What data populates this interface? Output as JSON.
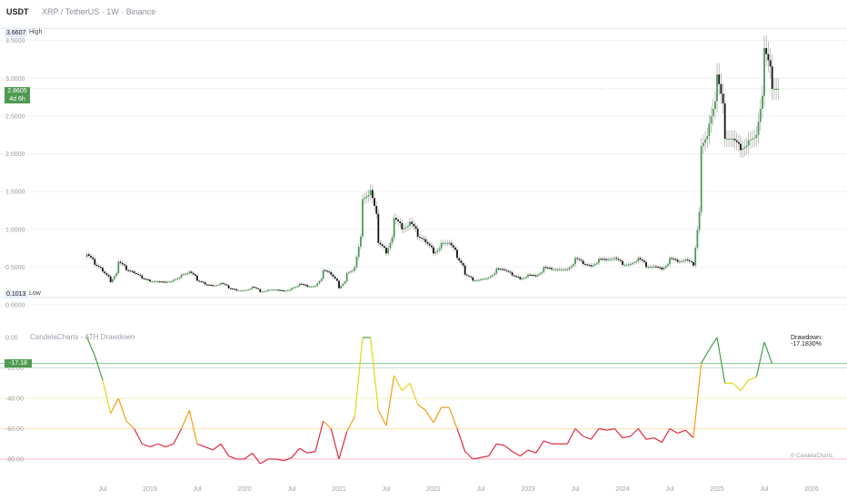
{
  "header": {
    "unit": "USDT",
    "symbol": "XRP / TetherUS · 1W · Binance"
  },
  "price_tags": {
    "high_value": "3.6607",
    "high_label": "High",
    "low_value": "0.1013",
    "low_label": "Low",
    "last_value": "2.8605",
    "last_countdown": "4d 6h"
  },
  "indicator": {
    "title": "CandelaCharts - ATH Drawdown",
    "current_value": "-17.18",
    "drawdown_label": "Drawdown: -17.1830%",
    "watermark": "© CandelaCharts"
  },
  "colors": {
    "up": "#4f9a52",
    "down": "#111111",
    "green": "#43a047",
    "yellow": "#e8d21c",
    "orange": "#f39c12",
    "red": "#e0283f"
  },
  "chart_data": [
    {
      "type": "candlestick",
      "title": "XRP / TetherUS · 1W · Binance",
      "ylim": [
        0.0,
        3.7
      ],
      "y_ticks": [
        "0.0000",
        "0.5000",
        "1.0000",
        "1.5000",
        "2.0000",
        "2.5000",
        "3.0000",
        "3.5000"
      ],
      "x_ticks": [
        "Jul",
        "2019",
        "Jul",
        "2020",
        "Jul",
        "2021",
        "Jul",
        "2022",
        "Jul",
        "2023",
        "Jul",
        "2024",
        "Jul",
        "2025",
        "Jul",
        "2026"
      ],
      "high": 3.6607,
      "low": 0.1013,
      "last": 2.8605,
      "x": [
        "2018-05",
        "2018-06",
        "2018-07",
        "2018-08",
        "2018-09",
        "2018-10",
        "2018-11",
        "2018-12",
        "2019-01",
        "2019-02",
        "2019-03",
        "2019-04",
        "2019-05",
        "2019-06",
        "2019-07",
        "2019-08",
        "2019-09",
        "2019-10",
        "2019-11",
        "2019-12",
        "2020-01",
        "2020-02",
        "2020-03",
        "2020-04",
        "2020-05",
        "2020-06",
        "2020-07",
        "2020-08",
        "2020-09",
        "2020-10",
        "2020-11",
        "2020-12",
        "2021-01",
        "2021-02",
        "2021-03",
        "2021-04",
        "2021-05",
        "2021-06",
        "2021-07",
        "2021-08",
        "2021-09",
        "2021-10",
        "2021-11",
        "2021-12",
        "2022-01",
        "2022-02",
        "2022-03",
        "2022-04",
        "2022-05",
        "2022-06",
        "2022-07",
        "2022-08",
        "2022-09",
        "2022-10",
        "2022-11",
        "2022-12",
        "2023-01",
        "2023-02",
        "2023-03",
        "2023-04",
        "2023-05",
        "2023-06",
        "2023-07",
        "2023-08",
        "2023-09",
        "2023-10",
        "2023-11",
        "2023-12",
        "2024-01",
        "2024-02",
        "2024-03",
        "2024-04",
        "2024-05",
        "2024-06",
        "2024-07",
        "2024-08",
        "2024-09",
        "2024-10",
        "2024-11",
        "2024-12",
        "2025-01",
        "2025-02",
        "2025-03",
        "2025-04",
        "2025-05",
        "2025-06",
        "2025-07",
        "2025-08"
      ],
      "close": [
        0.67,
        0.53,
        0.44,
        0.3,
        0.57,
        0.46,
        0.42,
        0.35,
        0.31,
        0.31,
        0.3,
        0.33,
        0.4,
        0.44,
        0.32,
        0.27,
        0.25,
        0.29,
        0.22,
        0.19,
        0.19,
        0.24,
        0.17,
        0.2,
        0.2,
        0.18,
        0.22,
        0.28,
        0.24,
        0.25,
        0.46,
        0.4,
        0.22,
        0.42,
        0.5,
        1.4,
        1.52,
        0.82,
        0.68,
        1.15,
        1.0,
        1.1,
        0.9,
        0.83,
        0.68,
        0.82,
        0.82,
        0.62,
        0.4,
        0.32,
        0.34,
        0.36,
        0.48,
        0.46,
        0.39,
        0.34,
        0.4,
        0.38,
        0.5,
        0.47,
        0.47,
        0.47,
        0.62,
        0.54,
        0.51,
        0.61,
        0.6,
        0.62,
        0.53,
        0.54,
        0.62,
        0.5,
        0.51,
        0.47,
        0.62,
        0.57,
        0.6,
        0.52,
        2.1,
        2.4,
        3.05,
        2.2,
        2.2,
        2.05,
        2.18,
        2.25,
        3.4,
        2.86
      ]
    },
    {
      "type": "line",
      "title": "CandelaCharts - ATH Drawdown",
      "ylim": [
        -85,
        0
      ],
      "y_ticks": [
        "0.00",
        "-20.00",
        "-40.00",
        "-60.00",
        "-80.00"
      ],
      "x_ticks": [
        "Jul",
        "2019",
        "Jul",
        "2020",
        "Jul",
        "2021",
        "Jul",
        "2022",
        "Jul",
        "2023",
        "Jul",
        "2024",
        "Jul",
        "2025",
        "Jul",
        "2026"
      ],
      "thresholds": [
        -20,
        -40,
        -60,
        -80
      ],
      "x": [
        "2018-05",
        "2018-06",
        "2018-07",
        "2018-08",
        "2018-09",
        "2018-10",
        "2018-11",
        "2018-12",
        "2019-01",
        "2019-02",
        "2019-03",
        "2019-04",
        "2019-05",
        "2019-06",
        "2019-07",
        "2019-08",
        "2019-09",
        "2019-10",
        "2019-11",
        "2019-12",
        "2020-01",
        "2020-02",
        "2020-03",
        "2020-04",
        "2020-05",
        "2020-06",
        "2020-07",
        "2020-08",
        "2020-09",
        "2020-10",
        "2020-11",
        "2020-12",
        "2021-01",
        "2021-02",
        "2021-03",
        "2021-04",
        "2021-05",
        "2021-06",
        "2021-07",
        "2021-08",
        "2021-09",
        "2021-10",
        "2021-11",
        "2021-12",
        "2022-01",
        "2022-02",
        "2022-03",
        "2022-04",
        "2022-05",
        "2022-06",
        "2022-07",
        "2022-08",
        "2022-09",
        "2022-10",
        "2022-11",
        "2022-12",
        "2023-01",
        "2023-02",
        "2023-03",
        "2023-04",
        "2023-05",
        "2023-06",
        "2023-07",
        "2023-08",
        "2023-09",
        "2023-10",
        "2023-11",
        "2023-12",
        "2024-01",
        "2024-02",
        "2024-03",
        "2024-04",
        "2024-05",
        "2024-06",
        "2024-07",
        "2024-08",
        "2024-09",
        "2024-10",
        "2024-11",
        "2024-12",
        "2025-01",
        "2025-02",
        "2025-03",
        "2025-04",
        "2025-05",
        "2025-06",
        "2025-07",
        "2025-08"
      ],
      "values": [
        0,
        -12,
        -28,
        -50,
        -40,
        -55,
        -60,
        -70,
        -72,
        -70,
        -72,
        -70,
        -60,
        -48,
        -70,
        -72,
        -74,
        -70,
        -78,
        -80,
        -80,
        -76,
        -83,
        -80,
        -80,
        -81,
        -79,
        -73,
        -76,
        -75,
        -55,
        -60,
        -80,
        -62,
        -52,
        0,
        0,
        -48,
        -58,
        -25,
        -35,
        -30,
        -44,
        -48,
        -56,
        -46,
        -46,
        -60,
        -75,
        -80,
        -79,
        -78,
        -70,
        -71,
        -75,
        -78,
        -74,
        -76,
        -68,
        -70,
        -70,
        -70,
        -60,
        -65,
        -67,
        -60,
        -61,
        -60,
        -66,
        -65,
        -60,
        -67,
        -66,
        -69,
        -60,
        -63,
        -61,
        -66,
        -17,
        -8,
        0,
        -30,
        -30,
        -35,
        -28,
        -26,
        -3,
        -17.18
      ]
    }
  ]
}
